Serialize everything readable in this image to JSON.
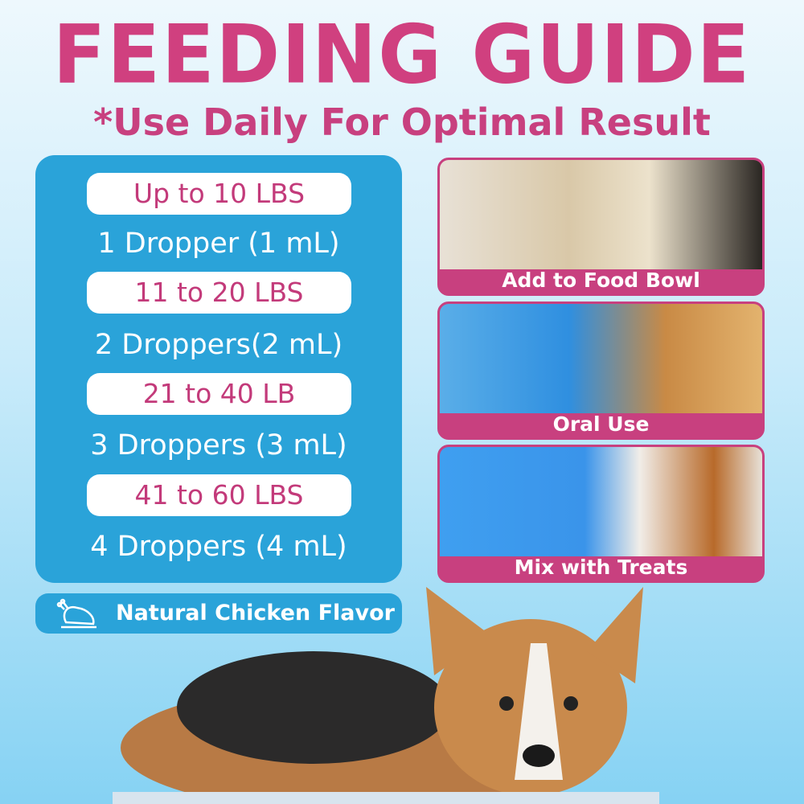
{
  "header": {
    "title": "FEEDING GUIDE",
    "subtitle": "*Use Daily For Optimal Result"
  },
  "dosage": [
    {
      "weight": "Up to 10 LBS",
      "dose": "1 Dropper (1 mL)"
    },
    {
      "weight": "11 to 20 LBS",
      "dose": "2 Droppers(2 mL)"
    },
    {
      "weight": "21 to 40 LB",
      "dose": "3 Droppers (3 mL)"
    },
    {
      "weight": "41 to 60 LBS",
      "dose": "4 Droppers (4 mL)"
    }
  ],
  "flavor": {
    "icon": "roast-chicken-icon",
    "label": "Natural Chicken Flavor"
  },
  "methods": [
    {
      "label": "Add to Food Bowl"
    },
    {
      "label": "Oral Use"
    },
    {
      "label": "Mix with Treats"
    }
  ],
  "colors": {
    "accent": "#c8407f",
    "panel": "#2aa3d9"
  }
}
